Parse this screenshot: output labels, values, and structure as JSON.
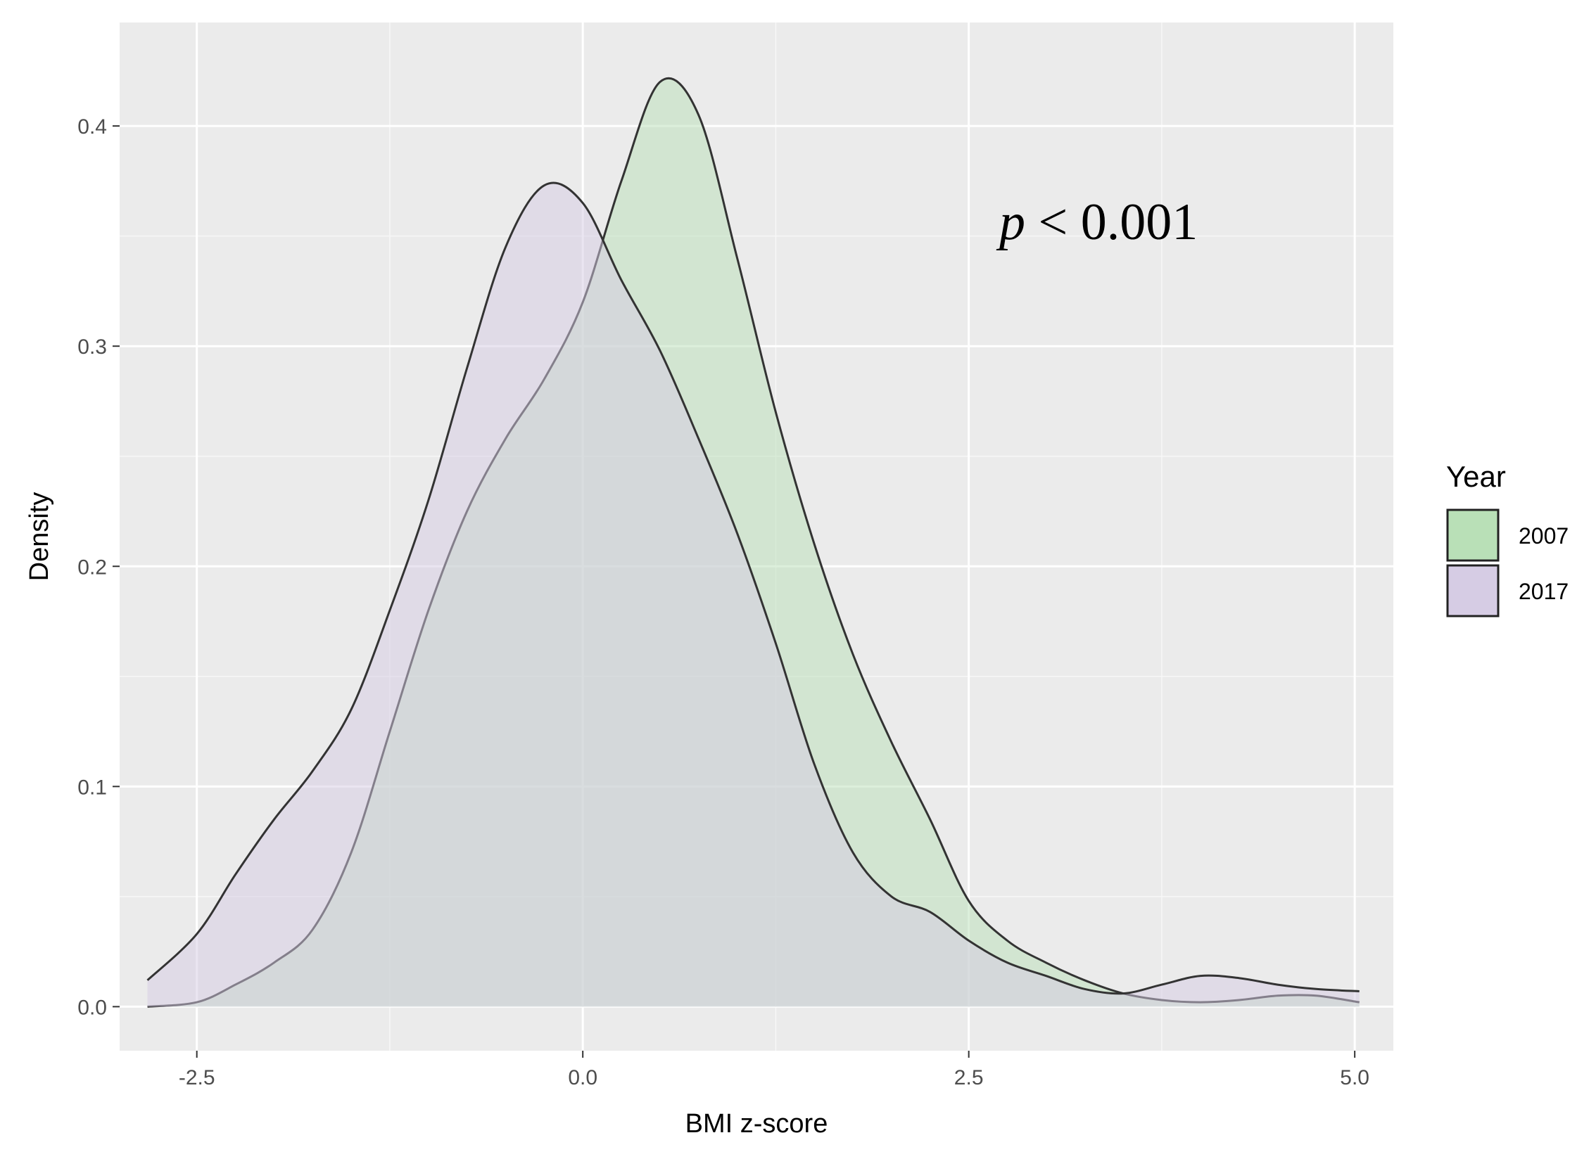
{
  "chart_data": {
    "type": "area",
    "xlabel": "BMI z-score",
    "ylabel": "Density",
    "xlim": [
      -3.0,
      5.25
    ],
    "ylim": [
      -0.02,
      0.447
    ],
    "x_ticks": [
      -2.5,
      0.0,
      2.5,
      5.0
    ],
    "x_tick_labels": [
      "-2.5",
      "0.0",
      "2.5",
      "5.0"
    ],
    "y_ticks": [
      0.0,
      0.1,
      0.2,
      0.3,
      0.4
    ],
    "y_tick_labels": [
      "0.0",
      "0.1",
      "0.2",
      "0.3",
      "0.4"
    ],
    "grid": true,
    "legend": {
      "title": "Year",
      "position": "right"
    },
    "annotation": {
      "italic": "p",
      "text": " < 0.001"
    },
    "series": [
      {
        "name": "2007",
        "fill": "#b9e0b7",
        "x": [
          -2.82,
          -2.5,
          -2.25,
          -2.0,
          -1.75,
          -1.5,
          -1.25,
          -1.0,
          -0.75,
          -0.5,
          -0.25,
          0.0,
          0.25,
          0.5,
          0.75,
          1.0,
          1.25,
          1.5,
          1.75,
          2.0,
          2.25,
          2.5,
          2.75,
          3.0,
          3.25,
          3.5,
          3.75,
          4.0,
          4.25,
          4.5,
          4.75,
          5.03
        ],
        "y": [
          0.0,
          0.002,
          0.01,
          0.02,
          0.035,
          0.07,
          0.125,
          0.18,
          0.225,
          0.258,
          0.285,
          0.32,
          0.375,
          0.42,
          0.405,
          0.34,
          0.27,
          0.21,
          0.16,
          0.12,
          0.085,
          0.048,
          0.03,
          0.02,
          0.012,
          0.006,
          0.003,
          0.002,
          0.003,
          0.005,
          0.005,
          0.002
        ]
      },
      {
        "name": "2017",
        "fill": "#d6cce4",
        "x": [
          -2.82,
          -2.5,
          -2.25,
          -2.0,
          -1.75,
          -1.5,
          -1.25,
          -1.0,
          -0.75,
          -0.5,
          -0.25,
          0.0,
          0.25,
          0.5,
          0.75,
          1.0,
          1.25,
          1.5,
          1.75,
          2.0,
          2.25,
          2.5,
          2.75,
          3.0,
          3.25,
          3.5,
          3.75,
          4.0,
          4.25,
          4.5,
          4.75,
          5.03
        ],
        "y": [
          0.012,
          0.033,
          0.06,
          0.085,
          0.107,
          0.135,
          0.18,
          0.23,
          0.29,
          0.345,
          0.373,
          0.365,
          0.33,
          0.298,
          0.258,
          0.215,
          0.165,
          0.11,
          0.07,
          0.05,
          0.043,
          0.03,
          0.02,
          0.014,
          0.008,
          0.006,
          0.01,
          0.014,
          0.013,
          0.01,
          0.008,
          0.007
        ]
      }
    ]
  }
}
